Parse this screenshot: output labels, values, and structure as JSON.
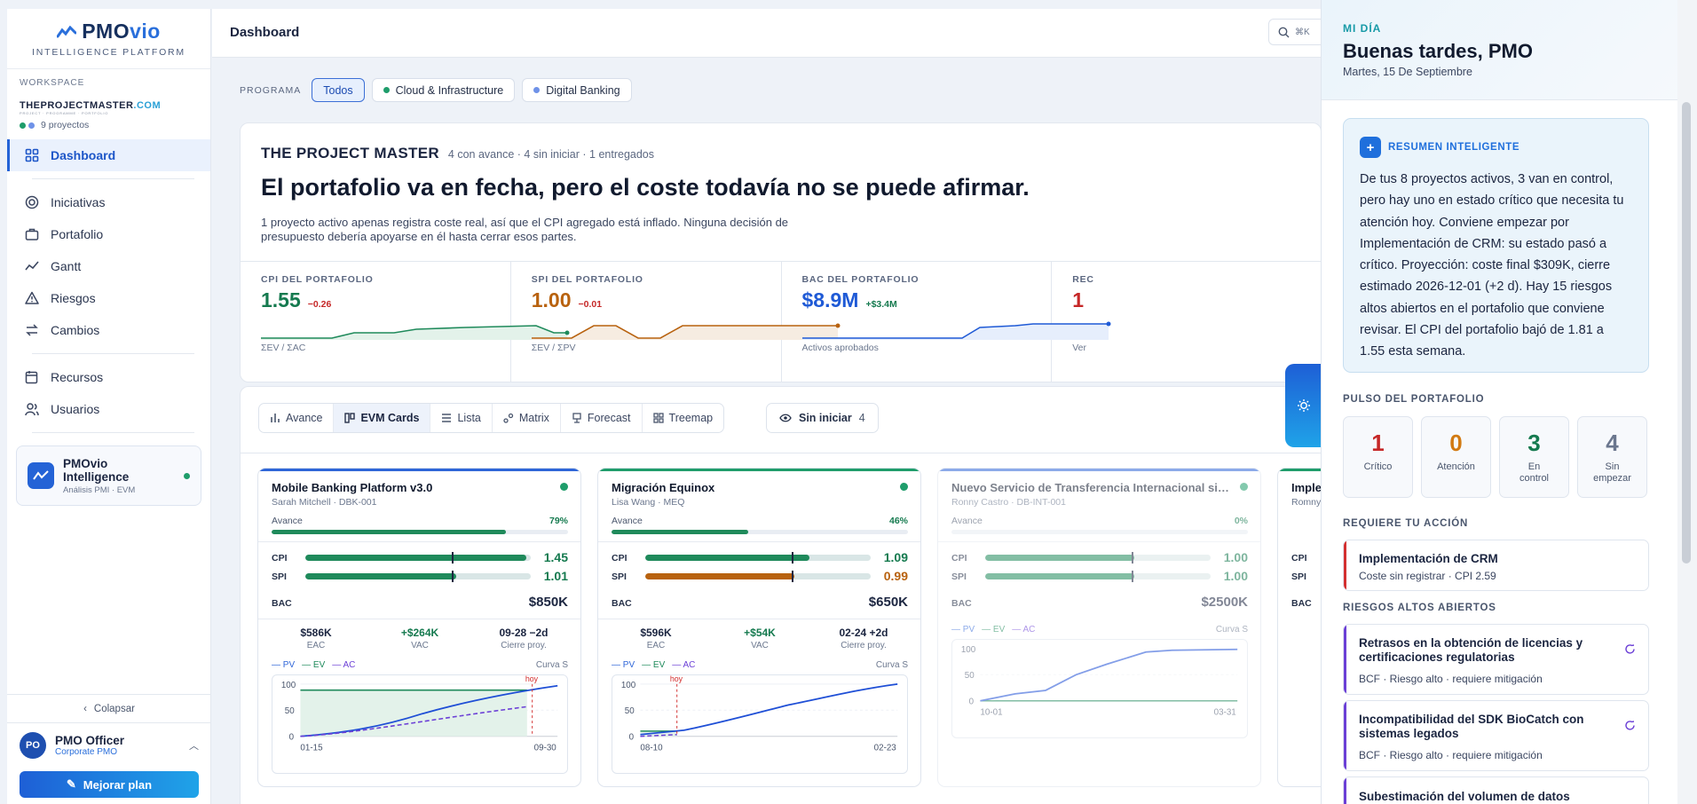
{
  "sidebar": {
    "logo": {
      "text_a": "PMO",
      "text_b": "vio",
      "subtitle": "INTELLIGENCE PLATFORM"
    },
    "workspace": {
      "label": "WORKSPACE",
      "brand_a": "THEPROJECTMASTER",
      "brand_b": ".COM",
      "brand_sub": "PROJECT · PROGRAMME · PORTFOLIO",
      "projects": "9 proyectos"
    },
    "nav": [
      {
        "label": "Dashboard",
        "icon": "dashboard-icon"
      },
      {
        "label": "Iniciativas",
        "icon": "target-icon"
      },
      {
        "label": "Portafolio",
        "icon": "briefcase-icon"
      },
      {
        "label": "Gantt",
        "icon": "trend-icon"
      },
      {
        "label": "Riesgos",
        "icon": "warning-icon"
      },
      {
        "label": "Cambios",
        "icon": "swap-icon"
      },
      {
        "label": "Recursos",
        "icon": "calendar-user-icon"
      },
      {
        "label": "Usuarios",
        "icon": "users-icon"
      }
    ],
    "intelligence": {
      "title": "PMOvio Intelligence",
      "subtitle": "Análisis PMI · EVM"
    },
    "collapse": "Colapsar",
    "user": {
      "initials": "PO",
      "name": "PMO Officer",
      "role": "Corporate PMO"
    },
    "upgrade": "Mejorar plan"
  },
  "topbar": {
    "title": "Dashboard",
    "search_shortcut": "⌘K"
  },
  "filters": {
    "label": "PROGRAMA",
    "chips": [
      {
        "label": "Todos"
      },
      {
        "label": "Cloud & Infrastructure",
        "color": "#1f9d6b"
      },
      {
        "label": "Digital Banking",
        "color": "#3b6fd6"
      }
    ]
  },
  "hero": {
    "name": "THE PROJECT MASTER",
    "meta": "4 con avance · 4 sin iniciar · 1 entregados",
    "headline": "El portafolio va en fecha, pero el coste todavía no se puede afirmar.",
    "paragraph": "1 proyecto activo apenas registra coste real, así que el CPI agregado está inflado. Ninguna decisión de presupuesto debería apoyarse en él hasta cerrar esos partes.",
    "kpis": [
      {
        "label": "CPI DEL PORTAFOLIO",
        "value": "1.55",
        "delta": "−0.26",
        "sub": "ΣEV / ΣAC",
        "color": "#157a4f",
        "delta_color": "#c62828"
      },
      {
        "label": "SPI DEL PORTAFOLIO",
        "value": "1.00",
        "delta": "−0.01",
        "sub": "ΣEV / ΣPV",
        "color": "#b8620f",
        "delta_color": "#c62828"
      },
      {
        "label": "BAC DEL PORTAFOLIO",
        "value": "$8.9M",
        "delta": "+$3.4M",
        "sub": "Activos aprobados",
        "color": "#1f5ad6",
        "delta_color": "#157a4f"
      },
      {
        "label": "REC",
        "value": "1",
        "delta": "",
        "sub": "Ver",
        "color": "#c62828",
        "delta_color": "#c62828"
      }
    ]
  },
  "views": {
    "tabs": [
      {
        "label": "Avance",
        "icon": "bar-chart-icon"
      },
      {
        "label": "EVM Cards",
        "icon": "columns-icon"
      },
      {
        "label": "Lista",
        "icon": "list-icon"
      },
      {
        "label": "Matrix",
        "icon": "matrix-icon"
      },
      {
        "label": "Forecast",
        "icon": "forecast-icon"
      },
      {
        "label": "Treemap",
        "icon": "treemap-icon"
      }
    ],
    "toggle": {
      "label": "Sin iniciar",
      "count": "4"
    }
  },
  "cards": [
    {
      "title": "Mobile Banking Platform v3.0",
      "owner": "Sarah Mitchell · DBK-001",
      "progress": "79%",
      "progress_value": 79,
      "cpi": "1.45",
      "spi": "1.01",
      "bac": "$850K",
      "eac": "$586K",
      "vac": "+$264K",
      "close": "09-28 −2d",
      "eac_l": "EAC",
      "vac_l": "VAC",
      "close_l": "Cierre proy.",
      "x_start": "01-15",
      "x_end": "09-30",
      "today": "hoy",
      "accent": "#2f66d8",
      "status": "#1f9d6b"
    },
    {
      "title": "Migración Equinox",
      "owner": "Lisa Wang · MEQ",
      "progress": "46%",
      "progress_value": 46,
      "cpi": "1.09",
      "spi": "0.99",
      "bac": "$650K",
      "eac": "$596K",
      "vac": "+$54K",
      "close": "02-24 +2d",
      "eac_l": "EAC",
      "vac_l": "VAC",
      "close_l": "Cierre proy.",
      "x_start": "08-10",
      "x_end": "02-23",
      "today": "hoy",
      "accent": "#1f9d6b",
      "status": "#1f9d6b"
    },
    {
      "title": "Nuevo Servicio de Transferencia Internacional si…",
      "owner": "Ronny Castro · DB-INT-001",
      "progress": "0%",
      "progress_value": 0,
      "cpi": "1.00",
      "spi": "1.00",
      "bac": "$2500K",
      "x_start": "10-01",
      "x_end": "03-31",
      "accent": "#2f66d8",
      "status": "#1f9d6b"
    },
    {
      "title": "Imple",
      "owner": "Romny",
      "accent": "#1f9d6b"
    }
  ],
  "card_labels": {
    "avance": "Avance",
    "cpi": "CPI",
    "spi": "SPI",
    "bac": "BAC",
    "pv": "— PV",
    "ev": "— EV",
    "ac": "— AC",
    "curve": "Curva S",
    "y100": "100",
    "y50": "50",
    "y0": "0"
  },
  "right": {
    "kicker": "MI DÍA",
    "greeting": "Buenas tardes, PMO",
    "date": "Martes, 15 De Septiembre",
    "summary_kicker": "RESUMEN INTELIGENTE",
    "summary": "De tus 8 proyectos activos, 3 van en control, pero hay uno en estado crítico que necesita tu atención hoy. Conviene empezar por Implementación de CRM: su estado pasó a crítico. Proyección: coste final $309K, cierre estimado 2026-12-01 (+2 d). Hay 15 riesgos altos abiertos en el portafolio que conviene revisar. El CPI del portafolio bajó de 1.81 a 1.55 esta semana.",
    "pulse_label": "PULSO DEL PORTAFOLIO",
    "pulse": [
      {
        "value": "1",
        "label": "Crítico",
        "color": "#c62828"
      },
      {
        "value": "0",
        "label": "Atención",
        "color": "#d27a12"
      },
      {
        "value": "3",
        "label": "En control",
        "color": "#157a4f"
      },
      {
        "value": "4",
        "label": "Sin empezar",
        "color": "#6b778e"
      }
    ],
    "action_label": "REQUIERE TU ACCIÓN",
    "action": {
      "title": "Implementación de CRM",
      "sub": "Coste sin registrar · CPI 2.59"
    },
    "risks_label": "RIESGOS ALTOS ABIERTOS",
    "risks": [
      {
        "title": "Retrasos en la obtención de licencias y certificaciones regulatorias",
        "sub": "BCF · Riesgo alto · requiere mitigación"
      },
      {
        "title": "Incompatibilidad del SDK BioCatch con sistemas legados",
        "sub": "BCF · Riesgo alto · requiere mitigación"
      },
      {
        "title": "Subestimación del volumen de datos",
        "sub": ""
      }
    ]
  }
}
